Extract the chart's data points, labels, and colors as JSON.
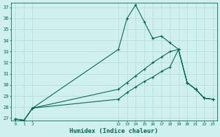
{
  "xlabel": "Humidex (Indice chaleur)",
  "background_color": "#cff0ec",
  "line_color": "#006655",
  "grid_color": "#b8ddd8",
  "ylim": [
    26.8,
    37.4
  ],
  "xlim": [
    -0.5,
    23.5
  ],
  "yticks": [
    27,
    28,
    29,
    30,
    31,
    32,
    33,
    34,
    35,
    36,
    37
  ],
  "xticks": [
    0,
    1,
    2,
    12,
    13,
    14,
    15,
    16,
    17,
    18,
    19,
    20,
    21,
    22,
    23
  ],
  "line1_x": [
    0,
    1,
    2,
    12,
    13,
    14,
    15,
    16,
    17,
    18,
    19,
    20,
    21,
    22,
    23
  ],
  "line1_y": [
    26.9,
    26.8,
    27.9,
    33.2,
    36.0,
    37.2,
    35.7,
    34.2,
    34.4,
    33.8,
    33.2,
    30.2,
    29.6,
    28.8,
    28.7
  ],
  "line2_x": [
    0,
    1,
    2,
    12,
    13,
    14,
    15,
    16,
    17,
    18,
    19,
    20,
    21,
    22,
    23
  ],
  "line2_y": [
    26.9,
    26.8,
    27.9,
    29.6,
    30.2,
    30.8,
    31.4,
    32.0,
    32.5,
    33.0,
    33.2,
    30.2,
    29.6,
    28.8,
    28.7
  ],
  "line3_x": [
    0,
    1,
    2,
    12,
    13,
    14,
    15,
    16,
    17,
    18,
    19,
    20,
    21,
    22,
    23
  ],
  "line3_y": [
    26.9,
    26.8,
    27.9,
    28.7,
    29.3,
    29.8,
    30.3,
    30.7,
    31.2,
    31.6,
    33.2,
    30.2,
    29.6,
    28.8,
    28.7
  ]
}
